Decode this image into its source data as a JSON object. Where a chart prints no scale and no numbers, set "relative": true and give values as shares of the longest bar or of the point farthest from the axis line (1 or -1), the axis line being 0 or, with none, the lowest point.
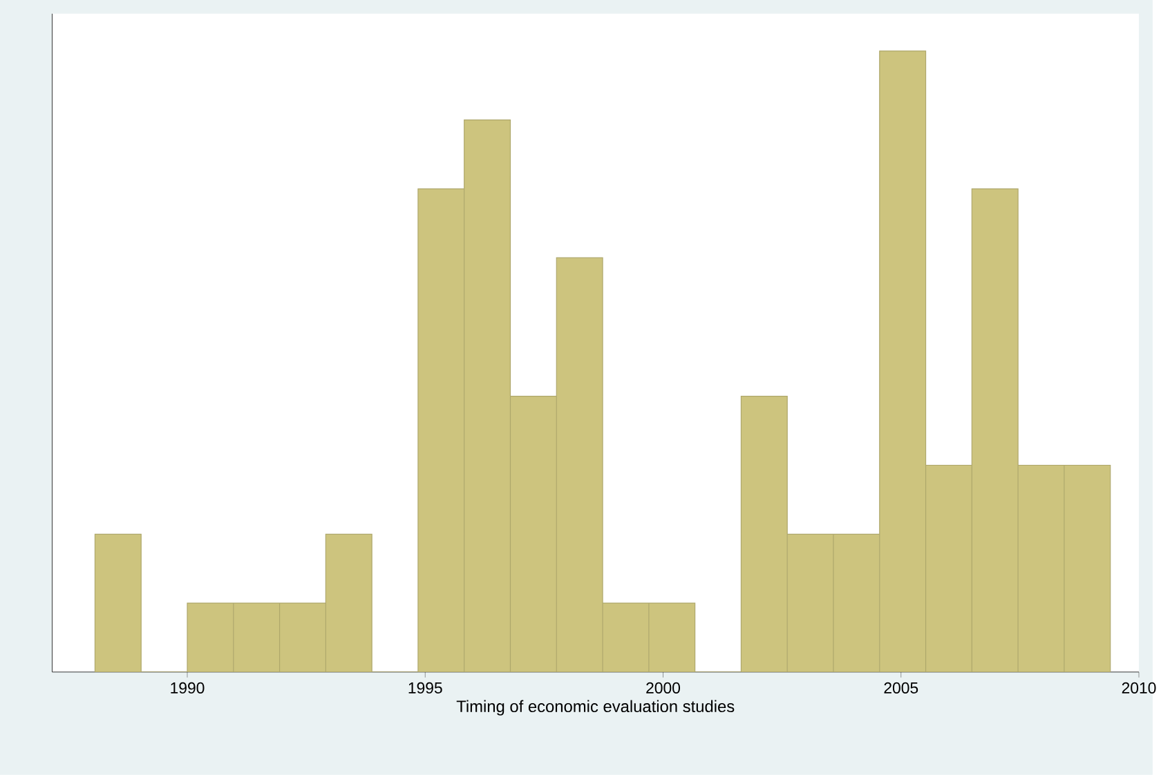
{
  "chart_data": {
    "type": "bar",
    "xlabel": "Timing of economic evaluation studies",
    "relative": true,
    "color": "#cdc47e",
    "x": [
      1988.545,
      1989.515,
      1990.485,
      1991.455,
      1992.425,
      1993.395,
      1994.365,
      1995.335,
      1996.305,
      1997.275,
      1998.245,
      1999.215,
      2000.185,
      2001.155,
      2002.125,
      2003.095,
      2004.065,
      2005.035,
      2006.005,
      2006.975,
      2007.945,
      2008.915
    ],
    "values": [
      0.222,
      0,
      0.111,
      0.111,
      0.111,
      0.222,
      0,
      0.778,
      0.889,
      0.444,
      0.667,
      0.111,
      0.111,
      0,
      0.444,
      0.222,
      0.222,
      1,
      0.333,
      0.778,
      0.333,
      0.333
    ],
    "xlim": [
      1987.16,
      2010
    ],
    "xticks": [
      1990,
      1995,
      2000,
      2005,
      2010
    ]
  }
}
